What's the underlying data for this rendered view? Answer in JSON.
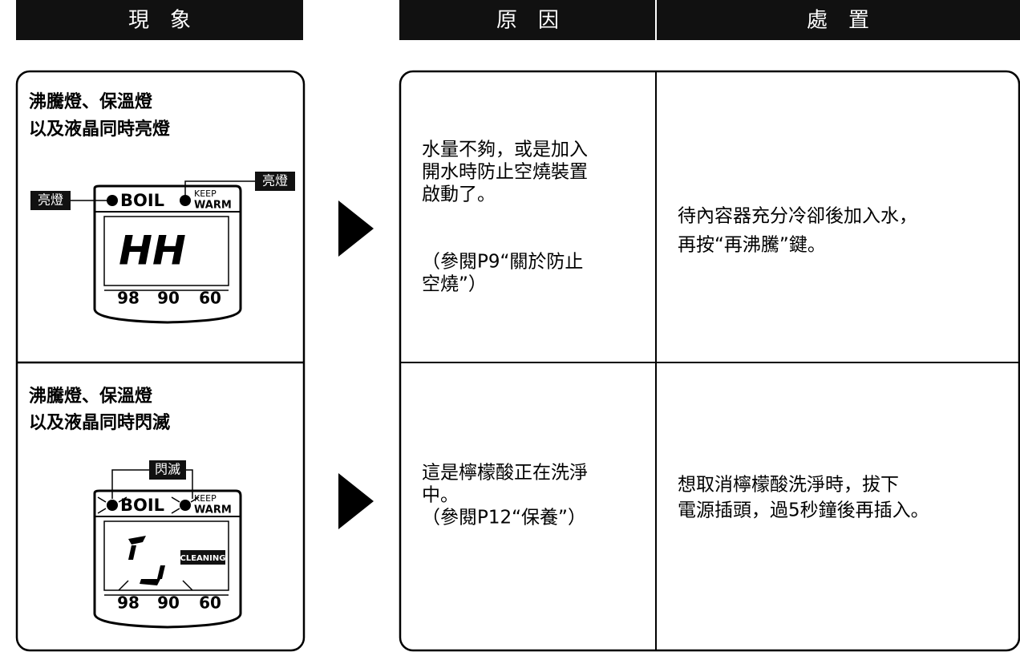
{
  "header": {
    "symptom": "現　象",
    "cause": "原　因",
    "remedy": "處　置"
  },
  "rows": [
    {
      "symptom": [
        "沸騰燈、保溫燈",
        "以及液晶同時亮燈"
      ],
      "display": {
        "callouts": [
          "亮燈",
          "亮燈"
        ],
        "boil": "BOIL",
        "keep": "KEEP",
        "warm": "WARM",
        "screen": "HH",
        "temps": [
          "98",
          "90",
          "60"
        ]
      },
      "cause": [
        "水量不夠，或是加入",
        "開水時防止空燒裝置",
        "啟動了。",
        "（參閱P9“關於防止",
        "空燒”）"
      ],
      "remedy": [
        "待內容器充分冷卻後加入水，",
        "再按“再沸騰”鍵。"
      ]
    },
    {
      "symptom": [
        "沸騰燈、保溫燈",
        "以及液晶同時閃滅"
      ],
      "display": {
        "callouts": [
          "閃滅"
        ],
        "boil": "BOIL",
        "keep": "KEEP",
        "warm": "WARM",
        "screen": "CLEANING",
        "temps": [
          "98",
          "90",
          "60"
        ]
      },
      "cause": [
        "這是檸檬酸正在洗淨",
        "中。",
        "（參閱P12“保養”）"
      ],
      "remedy": [
        "想取消檸檬酸洗淨時，拔下",
        "電源插頭，過5秒鐘後再插入。"
      ]
    }
  ]
}
